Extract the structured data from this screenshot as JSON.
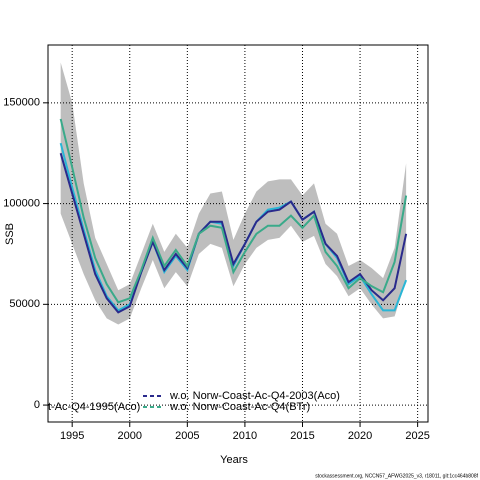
{
  "chart_data": {
    "type": "line",
    "x_label": "Years",
    "y_label": "SSB",
    "footer": "stockassessment.org, NCCN57_AFWG2025_v3, r18011, git:1cc464b808f",
    "x": [
      1994,
      1995,
      1996,
      1997,
      1998,
      1999,
      2000,
      2001,
      2002,
      2003,
      2004,
      2005,
      2006,
      2007,
      2008,
      2009,
      2010,
      2011,
      2012,
      2013,
      2014,
      2015,
      2016,
      2017,
      2018,
      2019,
      2020,
      2021,
      2022,
      2023,
      2024
    ],
    "band": {
      "color": "#bebebe",
      "upper": [
        170000,
        150000,
        110000,
        83000,
        70000,
        57000,
        60000,
        75000,
        90000,
        76000,
        85000,
        78000,
        95000,
        105000,
        106000,
        82000,
        95000,
        106000,
        111000,
        112000,
        112000,
        104000,
        110000,
        90000,
        85000,
        69000,
        72000,
        68000,
        63000,
        78000,
        120000
      ],
      "lower": [
        95000,
        80000,
        65000,
        52000,
        43000,
        40000,
        43000,
        58000,
        72000,
        58000,
        66000,
        59000,
        75000,
        80000,
        78000,
        59000,
        70000,
        78000,
        82000,
        83000,
        89000,
        81000,
        84000,
        70000,
        64000,
        54000,
        58000,
        50000,
        43000,
        44000,
        62000
      ]
    },
    "series": [
      {
        "name": "t-Ac-Q4-1995(Aco)",
        "color": "#29b6d6",
        "values": [
          130000,
          108000,
          87000,
          67000,
          54000,
          47000,
          50000,
          66000,
          81000,
          66000,
          74000,
          67000,
          85000,
          91000,
          90000,
          69000,
          80000,
          91000,
          97000,
          98000,
          101000,
          92000,
          96000,
          80000,
          73000,
          60000,
          64000,
          55000,
          47000,
          47000,
          62000
        ]
      },
      {
        "name": "w.o. Norw-Coast-Ac-Q4-2003(Aco)",
        "color": "#2a2a8c",
        "values": [
          125000,
          105000,
          85000,
          65000,
          53000,
          46000,
          49000,
          66000,
          81000,
          67000,
          75000,
          68000,
          85000,
          91000,
          91000,
          70000,
          80000,
          91000,
          96000,
          97000,
          101000,
          92000,
          96000,
          80000,
          74000,
          61000,
          65000,
          57000,
          52000,
          58000,
          85000
        ]
      },
      {
        "name": "w.o. Norw-Coast-Ac-Q4(BTr)",
        "color": "#3aaa8a",
        "values": [
          142000,
          118000,
          93000,
          73000,
          60000,
          51000,
          53000,
          67000,
          83000,
          69000,
          77000,
          69000,
          85000,
          89000,
          88000,
          66000,
          76000,
          85000,
          89000,
          89000,
          94000,
          88000,
          94000,
          76000,
          69000,
          58000,
          63000,
          59000,
          56000,
          71000,
          104000
        ]
      }
    ],
    "legend_line_style": "dashed",
    "xlim": [
      1992.9,
      2025.9
    ],
    "ylim": [
      -8400,
      178700
    ],
    "xticks": [
      1995,
      2000,
      2005,
      2010,
      2015,
      2020,
      2025
    ],
    "yticks": [
      0,
      50000,
      100000,
      150000
    ],
    "grid": true
  }
}
